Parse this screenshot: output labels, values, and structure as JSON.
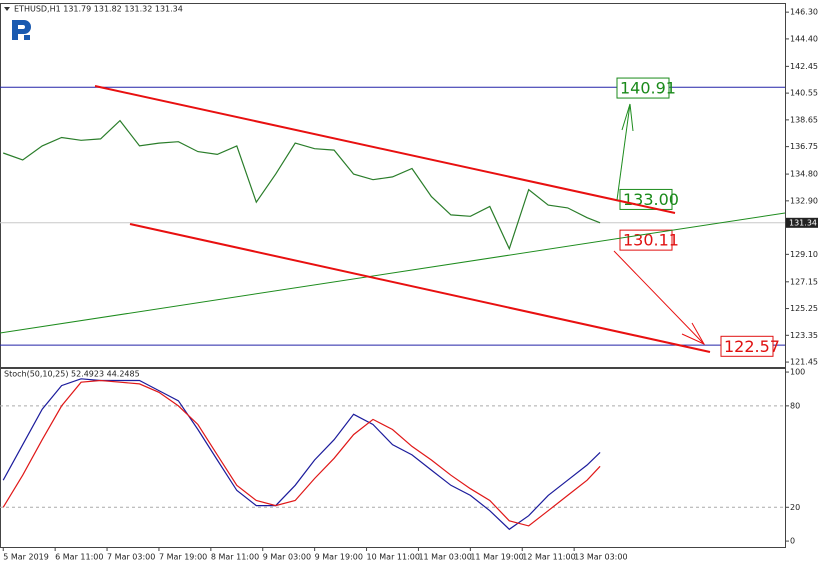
{
  "chart_data": [
    {
      "type": "line",
      "title": "ETHUSD,H1  131.79 131.82 131.32 131.34",
      "x": [
        0,
        6,
        12,
        18,
        24,
        30,
        36,
        42,
        48,
        54,
        60,
        66,
        72,
        78,
        84,
        90,
        96,
        102,
        108,
        114,
        120,
        126,
        132,
        138,
        144,
        150,
        156,
        162,
        168,
        174,
        180,
        184
      ],
      "values": [
        136.3,
        135.8,
        136.8,
        137.4,
        137.2,
        137.3,
        138.6,
        136.8,
        137.0,
        137.1,
        136.4,
        136.2,
        136.8,
        132.8,
        134.8,
        137.0,
        136.6,
        136.5,
        134.8,
        134.4,
        134.6,
        135.2,
        133.2,
        131.9,
        131.8,
        132.5,
        129.5,
        133.7,
        132.6,
        132.4,
        131.7,
        131.34
      ],
      "color": "#2a7d2a",
      "xlim": [
        -1,
        241
      ],
      "ylim": [
        121.1,
        146.95
      ],
      "yticks": [
        {
          "value": 146.3,
          "label": "146.30"
        },
        {
          "value": 144.4,
          "label": "144.40"
        },
        142.45,
        140.55,
        138.65,
        136.75,
        {
          "value": 134.8,
          "label": "134.80"
        },
        {
          "value": 132.9,
          "label": "132.90"
        },
        {
          "value": 129.1,
          "label": "129.10"
        },
        127.15,
        125.25,
        123.35,
        121.45
      ],
      "last_price": 131.34,
      "levels": [
        140.97,
        122.65
      ],
      "level_color": "#2323a8",
      "annotations": [
        {
          "text": "140.91",
          "value": 140.91,
          "color": "#1a8a1a"
        },
        {
          "text": "133.00",
          "value": 133.0,
          "color": "#1a8a1a"
        },
        {
          "text": "130.11",
          "value": 130.11,
          "color": "#e01010"
        },
        {
          "text": "122.57",
          "value": 122.57,
          "color": "#e01010"
        }
      ]
    },
    {
      "type": "line",
      "title": "Stoch(50,10,25) 52.4923 44.2485",
      "x": [
        0,
        6,
        12,
        18,
        24,
        30,
        36,
        42,
        48,
        54,
        60,
        66,
        72,
        78,
        84,
        90,
        96,
        102,
        108,
        114,
        120,
        126,
        132,
        138,
        144,
        150,
        156,
        162,
        168,
        174,
        180,
        184
      ],
      "series": [
        {
          "color": "#1c1c9c",
          "values": [
            36,
            57,
            78,
            92,
            96,
            95,
            95,
            95,
            89,
            83,
            66,
            48,
            30,
            21,
            21,
            33,
            48,
            60,
            75,
            69,
            57,
            51,
            42,
            33,
            27,
            18,
            7,
            15,
            27,
            36,
            45,
            52.4923
          ]
        },
        {
          "color": "#e01818",
          "values": [
            20,
            39,
            60,
            80,
            94,
            95,
            94,
            93,
            88,
            80,
            69,
            51,
            33,
            24,
            21,
            24,
            37,
            49,
            63,
            72,
            66,
            56,
            48,
            39,
            31,
            24,
            12,
            9,
            18,
            27,
            36,
            44.2485
          ]
        }
      ],
      "xlim": [
        -1,
        241
      ],
      "ylim": [
        -3.5,
        102.4
      ],
      "yticks": [
        100,
        80,
        20,
        0
      ],
      "levels": [
        80,
        20
      ],
      "xticks": [
        {
          "value": 0,
          "label": "5 Mar 2019"
        },
        {
          "value": 16,
          "label": "6 Mar 11:00"
        },
        {
          "value": 32,
          "label": "7 Mar 03:00"
        },
        {
          "value": 48,
          "label": "7 Mar 19:00"
        },
        {
          "value": 64,
          "label": "8 Mar 11:00"
        },
        {
          "value": 80,
          "label": "9 Mar 03:00"
        },
        {
          "value": 96,
          "label": "9 Mar 19:00"
        },
        {
          "value": 112,
          "label": "10 Mar 11:00"
        },
        {
          "value": 128,
          "label": "11 Mar 03:00"
        },
        {
          "value": 144,
          "label": "11 Mar 19:00"
        },
        {
          "value": 160,
          "label": "12 Mar 11:00"
        },
        {
          "value": 176,
          "label": "13 Mar 03:00"
        }
      ]
    }
  ]
}
